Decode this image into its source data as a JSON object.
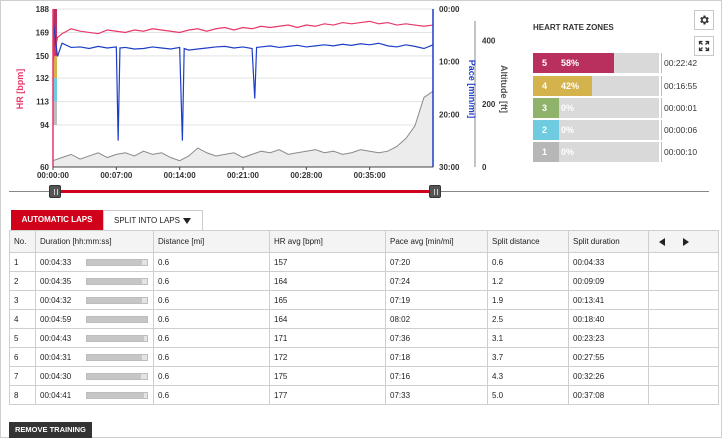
{
  "chart_data": {
    "type": "line",
    "x_unit": "time",
    "x_ticks": [
      "00:00:00",
      "00:07:00",
      "00:14:00",
      "00:21:00",
      "00:28:00",
      "00:35:00"
    ],
    "x_range_min": [
      0,
      42
    ],
    "y_left": {
      "label": "HR [bpm]",
      "ticks": [
        "188",
        "169",
        "150",
        "132",
        "113",
        "94",
        "60"
      ],
      "color": "#e8386a"
    },
    "y_pace": {
      "label": "Pace [min/mi]",
      "ticks": [
        "00:00",
        "10:00",
        "20:00",
        "30:00"
      ],
      "color": "#1d3ec7"
    },
    "y_alt": {
      "label": "Altitude [ft]",
      "ticks": [
        "400",
        "200",
        "0"
      ],
      "color": "#555555"
    },
    "series": [
      {
        "name": "HR [bpm]",
        "color": "#e8386a",
        "points": [
          [
            0,
            146
          ],
          [
            0.5,
            165
          ],
          [
            1,
            168
          ],
          [
            1.5,
            170
          ],
          [
            2,
            172
          ],
          [
            3,
            170
          ],
          [
            4,
            169
          ],
          [
            5,
            168
          ],
          [
            6,
            171
          ],
          [
            7,
            170
          ],
          [
            8,
            169
          ],
          [
            9,
            171
          ],
          [
            10,
            170
          ],
          [
            11,
            172
          ],
          [
            12,
            171
          ],
          [
            13,
            170
          ],
          [
            14,
            169
          ],
          [
            15,
            171
          ],
          [
            16,
            172
          ],
          [
            17,
            170
          ],
          [
            18,
            172
          ],
          [
            19,
            173
          ],
          [
            20,
            171
          ],
          [
            21,
            173
          ],
          [
            22,
            172
          ],
          [
            23,
            174
          ],
          [
            24,
            173
          ],
          [
            25,
            174
          ],
          [
            26,
            175
          ],
          [
            27,
            173
          ],
          [
            28,
            175
          ],
          [
            29,
            174
          ],
          [
            30,
            176
          ],
          [
            31,
            175
          ],
          [
            32,
            177
          ],
          [
            33,
            176
          ],
          [
            34,
            177
          ],
          [
            35,
            178
          ],
          [
            36,
            176
          ],
          [
            37,
            177
          ],
          [
            38,
            175
          ],
          [
            39,
            176
          ],
          [
            40,
            175
          ],
          [
            41,
            174
          ],
          [
            42,
            175
          ]
        ]
      },
      {
        "name": "Pace [min/mi]",
        "color": "#1d3ec7",
        "points": [
          [
            0,
            2
          ],
          [
            0.5,
            9
          ],
          [
            1,
            6.5
          ],
          [
            2,
            7.3
          ],
          [
            3,
            7.2
          ],
          [
            4,
            7.5
          ],
          [
            5,
            7.1
          ],
          [
            6,
            7.4
          ],
          [
            7,
            7.2
          ],
          [
            7.2,
            25
          ],
          [
            7.4,
            7.4
          ],
          [
            8,
            7.3
          ],
          [
            9,
            7.6
          ],
          [
            10,
            7.5
          ],
          [
            11,
            7.2
          ],
          [
            12,
            7.4
          ],
          [
            13,
            7.6
          ],
          [
            14,
            7.3
          ],
          [
            14.3,
            25
          ],
          [
            14.5,
            7.5
          ],
          [
            15,
            7.8
          ],
          [
            16,
            7.6
          ],
          [
            17,
            7.4
          ],
          [
            18,
            7.2
          ],
          [
            19,
            7.1
          ],
          [
            20,
            7.4
          ],
          [
            21,
            7.2
          ],
          [
            22,
            7.5
          ],
          [
            22.3,
            17
          ],
          [
            22.5,
            7.3
          ],
          [
            23,
            7.2
          ],
          [
            24,
            7.0
          ],
          [
            25,
            7.3
          ],
          [
            26,
            7.1
          ],
          [
            27,
            6.9
          ],
          [
            28,
            7.2
          ],
          [
            29,
            7.0
          ],
          [
            30,
            6.8
          ],
          [
            31,
            7.0
          ],
          [
            32,
            6.7
          ],
          [
            33,
            6.9
          ],
          [
            34,
            6.6
          ],
          [
            35,
            6.8
          ],
          [
            36,
            6.5
          ],
          [
            37,
            7.0
          ],
          [
            38,
            7.2
          ],
          [
            39,
            6.8
          ],
          [
            40,
            7.1
          ],
          [
            41,
            7.5
          ],
          [
            42,
            6.8
          ]
        ]
      },
      {
        "name": "Altitude [ft]",
        "color": "#9e9e9e",
        "points": [
          [
            0,
            20
          ],
          [
            1,
            30
          ],
          [
            2,
            40
          ],
          [
            3,
            25
          ],
          [
            4,
            35
          ],
          [
            5,
            45
          ],
          [
            6,
            30
          ],
          [
            7,
            40
          ],
          [
            8,
            45
          ],
          [
            9,
            35
          ],
          [
            10,
            50
          ],
          [
            11,
            40
          ],
          [
            12,
            45
          ],
          [
            13,
            30
          ],
          [
            14,
            20
          ],
          [
            15,
            35
          ],
          [
            16,
            60
          ],
          [
            17,
            45
          ],
          [
            18,
            35
          ],
          [
            19,
            40
          ],
          [
            20,
            45
          ],
          [
            21,
            30
          ],
          [
            22,
            40
          ],
          [
            23,
            50
          ],
          [
            24,
            45
          ],
          [
            25,
            55
          ],
          [
            26,
            40
          ],
          [
            27,
            45
          ],
          [
            28,
            50
          ],
          [
            29,
            55
          ],
          [
            30,
            45
          ],
          [
            31,
            50
          ],
          [
            32,
            40
          ],
          [
            33,
            45
          ],
          [
            34,
            55
          ],
          [
            35,
            50
          ],
          [
            36,
            45
          ],
          [
            37,
            50
          ],
          [
            38,
            65
          ],
          [
            39,
            90
          ],
          [
            40,
            130
          ],
          [
            41,
            220
          ],
          [
            42,
            240
          ]
        ]
      }
    ],
    "hr_range_min": [
      60,
      188
    ],
    "pace_range": [
      0,
      30
    ],
    "alt_range": [
      0,
      500
    ]
  },
  "zones": {
    "title": "HEART RATE ZONES",
    "items": [
      {
        "num": "5",
        "pct": "58%",
        "frac": 0.58,
        "time": "00:22:42",
        "color": "#b9305e"
      },
      {
        "num": "4",
        "pct": "42%",
        "frac": 0.42,
        "time": "00:16:55",
        "color": "#d4b24c"
      },
      {
        "num": "3",
        "pct": "0%",
        "frac": 0.0,
        "time": "00:00:01",
        "color": "#8fb36a"
      },
      {
        "num": "2",
        "pct": "0%",
        "frac": 0.0,
        "time": "00:00:06",
        "color": "#6fcbe0"
      },
      {
        "num": "1",
        "pct": "0%",
        "frac": 0.0,
        "time": "00:00:10",
        "color": "#b7b7b7"
      }
    ]
  },
  "tabs": {
    "auto": "AUTOMATIC LAPS",
    "split": "SPLIT INTO LAPS"
  },
  "table": {
    "headers": [
      "No.",
      "Duration [hh:mm:ss]",
      "Distance [mi]",
      "HR avg [bpm]",
      "Pace avg [min/mi]",
      "Split distance",
      "Split duration"
    ],
    "rows": [
      {
        "no": "1",
        "duration": "00:04:33",
        "frac": 0.91,
        "distance": "0.6",
        "hr": "157",
        "pace": "07:20",
        "split_dist": "0.6",
        "split_dur": "00:04:33"
      },
      {
        "no": "2",
        "duration": "00:04:35",
        "frac": 0.92,
        "distance": "0.6",
        "hr": "164",
        "pace": "07:24",
        "split_dist": "1.2",
        "split_dur": "00:09:09"
      },
      {
        "no": "3",
        "duration": "00:04:32",
        "frac": 0.91,
        "distance": "0.6",
        "hr": "165",
        "pace": "07:19",
        "split_dist": "1.9",
        "split_dur": "00:13:41"
      },
      {
        "no": "4",
        "duration": "00:04:59",
        "frac": 1.0,
        "distance": "0.6",
        "hr": "164",
        "pace": "08:02",
        "split_dist": "2.5",
        "split_dur": "00:18:40"
      },
      {
        "no": "5",
        "duration": "00:04:43",
        "frac": 0.95,
        "distance": "0.6",
        "hr": "171",
        "pace": "07:36",
        "split_dist": "3.1",
        "split_dur": "00:23:23"
      },
      {
        "no": "6",
        "duration": "00:04:31",
        "frac": 0.91,
        "distance": "0.6",
        "hr": "172",
        "pace": "07:18",
        "split_dist": "3.7",
        "split_dur": "00:27:55"
      },
      {
        "no": "7",
        "duration": "00:04:30",
        "frac": 0.9,
        "distance": "0.6",
        "hr": "175",
        "pace": "07:16",
        "split_dist": "4.3",
        "split_dur": "00:32:26"
      },
      {
        "no": "8",
        "duration": "00:04:41",
        "frac": 0.94,
        "distance": "0.6",
        "hr": "177",
        "pace": "07:33",
        "split_dist": "5.0",
        "split_dur": "00:37:08"
      }
    ]
  },
  "buttons": {
    "remove": "REMOVE TRAINING"
  },
  "icons": {
    "settings": "gear-icon",
    "fullscreen": "fullscreen-icon",
    "prev": "arrow-left-icon",
    "next": "arrow-right-icon"
  }
}
